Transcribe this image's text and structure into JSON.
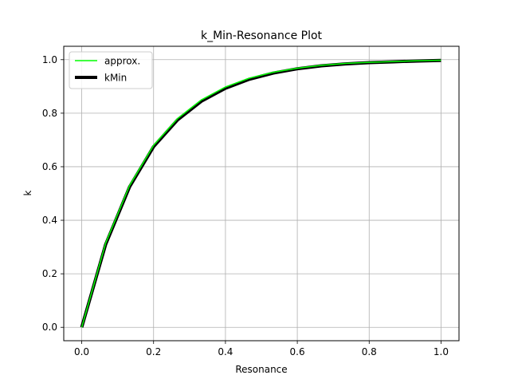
{
  "chart_data": {
    "type": "line",
    "title": "k_Min-Resonance Plot",
    "xlabel": "Resonance",
    "ylabel": "k",
    "xlim": [
      -0.05,
      1.05
    ],
    "ylim": [
      -0.05,
      1.05
    ],
    "xticks": [
      0.0,
      0.2,
      0.4,
      0.6,
      0.8,
      1.0
    ],
    "yticks": [
      0.0,
      0.2,
      0.4,
      0.6,
      0.8,
      1.0
    ],
    "xtick_labels": [
      "0.0",
      "0.2",
      "0.4",
      "0.6",
      "0.8",
      "1.0"
    ],
    "ytick_labels": [
      "0.0",
      "0.2",
      "0.4",
      "0.6",
      "0.8",
      "1.0"
    ],
    "grid": true,
    "legend_position": "top-left",
    "x": [
      0.0,
      0.0667,
      0.1333,
      0.2,
      0.2667,
      0.3333,
      0.4,
      0.4667,
      0.5333,
      0.6,
      0.6667,
      0.7333,
      0.8,
      0.8667,
      0.9333,
      1.0
    ],
    "series": [
      {
        "name": "kMin",
        "color": "#000000",
        "values": [
          0.0,
          0.31,
          0.525,
          0.675,
          0.775,
          0.845,
          0.893,
          0.927,
          0.95,
          0.966,
          0.977,
          0.984,
          0.989,
          0.992,
          0.995,
          0.997
        ]
      },
      {
        "name": "approx.",
        "color": "#00ff00",
        "values": [
          0.0,
          0.315,
          0.53,
          0.68,
          0.78,
          0.85,
          0.898,
          0.931,
          0.953,
          0.968,
          0.979,
          0.986,
          0.99,
          0.993,
          0.996,
          0.998
        ]
      }
    ]
  }
}
